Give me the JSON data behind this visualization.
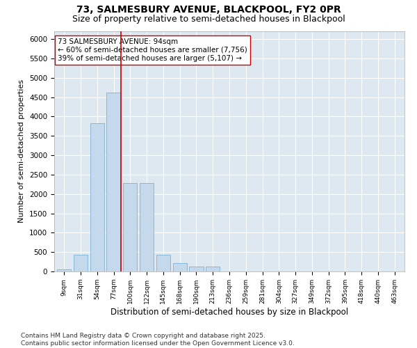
{
  "title1": "73, SALMESBURY AVENUE, BLACKPOOL, FY2 0PR",
  "title2": "Size of property relative to semi-detached houses in Blackpool",
  "xlabel": "Distribution of semi-detached houses by size in Blackpool",
  "ylabel": "Number of semi-detached properties",
  "categories": [
    "9sqm",
    "31sqm",
    "54sqm",
    "77sqm",
    "100sqm",
    "122sqm",
    "145sqm",
    "168sqm",
    "190sqm",
    "213sqm",
    "236sqm",
    "259sqm",
    "281sqm",
    "304sqm",
    "327sqm",
    "349sqm",
    "372sqm",
    "395sqm",
    "418sqm",
    "440sqm",
    "463sqm"
  ],
  "values": [
    50,
    430,
    3830,
    4620,
    2280,
    2280,
    430,
    220,
    130,
    120,
    0,
    0,
    0,
    0,
    0,
    0,
    0,
    0,
    0,
    0,
    0
  ],
  "bar_color": "#c5d9ec",
  "bar_edge_color": "#7aafd4",
  "vline_color": "#cc0000",
  "annotation_text": "73 SALMESBURY AVENUE: 94sqm\n← 60% of semi-detached houses are smaller (7,756)\n39% of semi-detached houses are larger (5,107) →",
  "annotation_box_color": "#ffffff",
  "annotation_box_edge": "#cc0000",
  "ylim": [
    0,
    6200
  ],
  "yticks": [
    0,
    500,
    1000,
    1500,
    2000,
    2500,
    3000,
    3500,
    4000,
    4500,
    5000,
    5500,
    6000
  ],
  "footer_text": "Contains HM Land Registry data © Crown copyright and database right 2025.\nContains public sector information licensed under the Open Government Licence v3.0.",
  "fig_bg_color": "#ffffff",
  "plot_bg_color": "#dde8f0",
  "title1_fontsize": 10,
  "title2_fontsize": 9,
  "annot_fontsize": 7.5,
  "footer_fontsize": 6.5,
  "ylabel_fontsize": 8,
  "xlabel_fontsize": 8.5
}
